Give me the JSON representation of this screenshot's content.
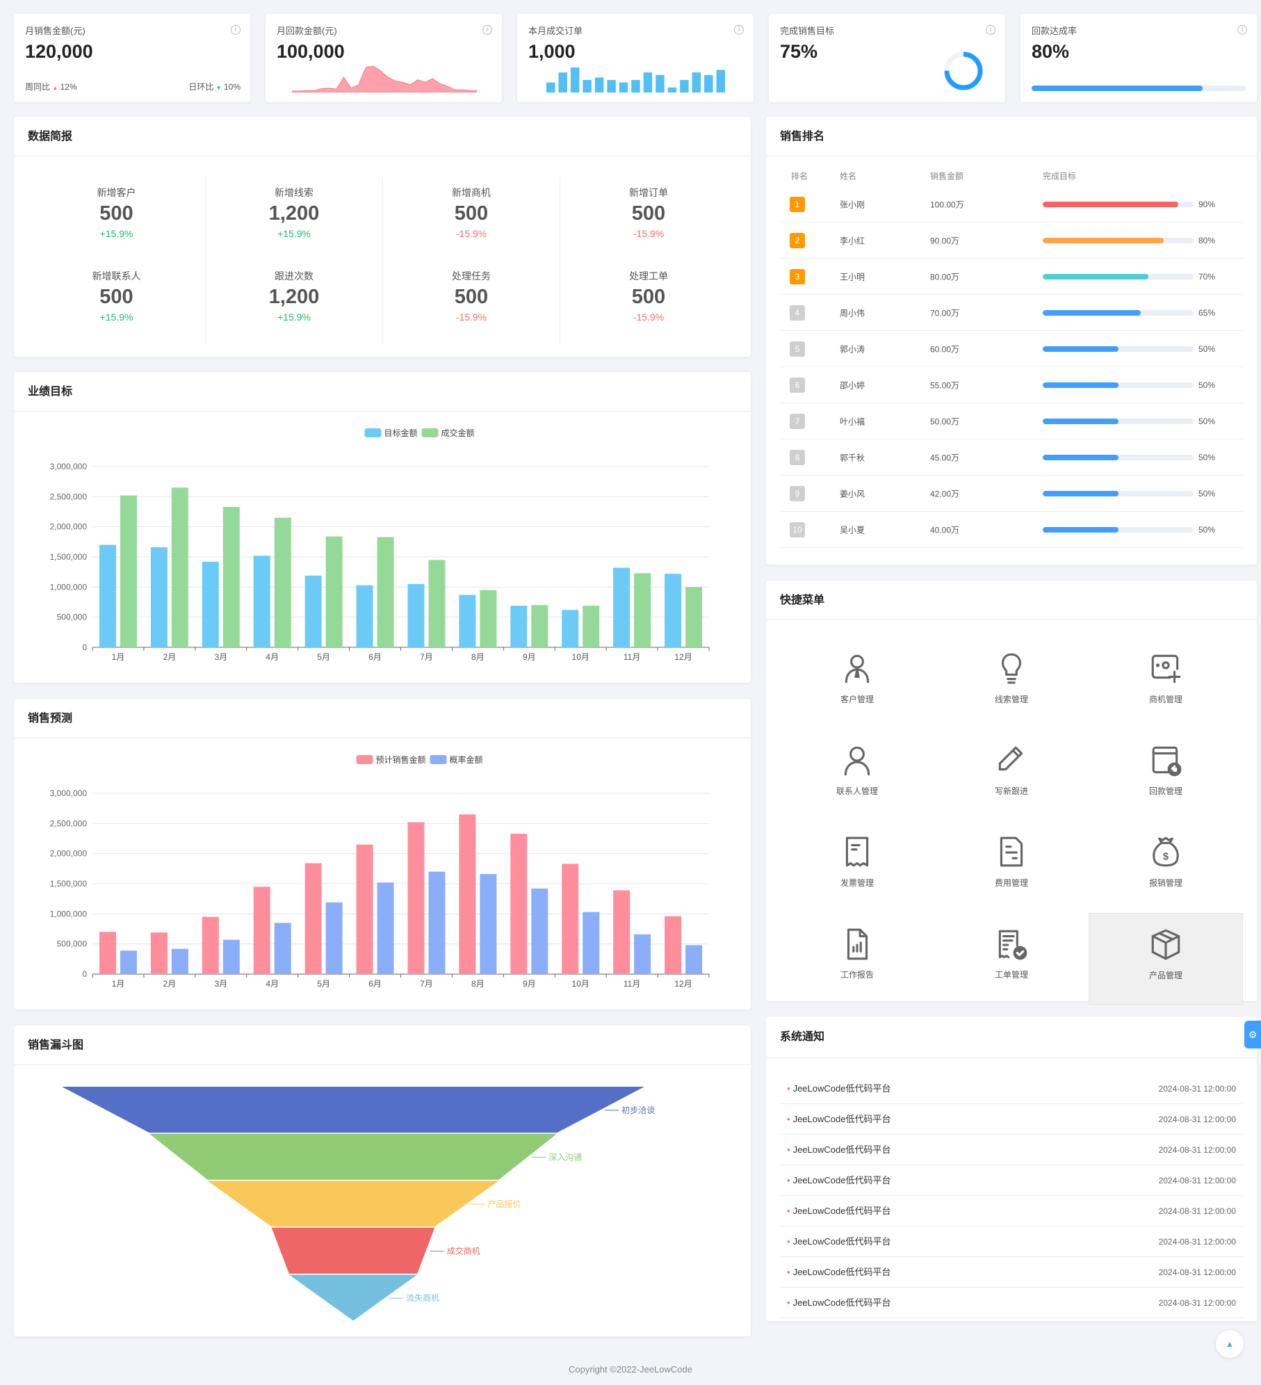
{
  "stats": [
    {
      "title": "月销售金额(元)",
      "value": "120,000",
      "week_label": "周同比",
      "week_value": "12%",
      "day_label": "日环比",
      "day_value": "10%"
    },
    {
      "title": "月回款金额(元)",
      "value": "100,000",
      "sparkline": [
        0,
        0,
        0.02,
        0.02,
        0.1,
        0.12,
        0.08,
        0.55,
        0.12,
        0.25,
        0.95,
        1,
        0.8,
        0.55,
        0.4,
        0.35,
        0.25,
        0.45,
        0.35,
        0.5,
        0.3,
        0.2,
        0.05,
        0.05,
        0.02,
        0.02
      ]
    },
    {
      "title": "本月成交订单",
      "value": "1,000",
      "bars": [
        4,
        8,
        10,
        5,
        6,
        5,
        4,
        5,
        8,
        7,
        2,
        5,
        8,
        7,
        9
      ]
    },
    {
      "title": "完成销售目标",
      "value": "75%",
      "progress": 75
    },
    {
      "title": "回款达成率",
      "value": "80%",
      "progress": 80
    }
  ],
  "brief": {
    "title": "数据简报",
    "items": [
      {
        "label": "新增客户",
        "value": "500",
        "change": "+15.9%",
        "trend": "up"
      },
      {
        "label": "新增线索",
        "value": "1,200",
        "change": "+15.9%",
        "trend": "up"
      },
      {
        "label": "新增商机",
        "value": "500",
        "change": "-15.9%",
        "trend": "down"
      },
      {
        "label": "新增订单",
        "value": "500",
        "change": "-15.9%",
        "trend": "down"
      },
      {
        "label": "新增联系人",
        "value": "500",
        "change": "+15.9%",
        "trend": "up"
      },
      {
        "label": "跟进次数",
        "value": "1,200",
        "change": "+15.9%",
        "trend": "up"
      },
      {
        "label": "处理任务",
        "value": "500",
        "change": "-15.9%",
        "trend": "down"
      },
      {
        "label": "处理工单",
        "value": "500",
        "change": "-15.9%",
        "trend": "down"
      }
    ]
  },
  "ranking": {
    "title": "销售排名",
    "headers": [
      "排名",
      "姓名",
      "销售金额",
      "完成目标"
    ],
    "rows": [
      {
        "rank": "1",
        "name": "张小刚",
        "amount": "100.00万",
        "pct": 90,
        "pct_label": "90%",
        "color": "#ff6161"
      },
      {
        "rank": "2",
        "name": "李小红",
        "amount": "90.00万",
        "pct": 80,
        "pct_label": "80%",
        "color": "#ffa44a"
      },
      {
        "rank": "3",
        "name": "王小明",
        "amount": "80.00万",
        "pct": 70,
        "pct_label": "70%",
        "color": "#4ecfd0"
      },
      {
        "rank": "4",
        "name": "周小伟",
        "amount": "70.00万",
        "pct": 65,
        "pct_label": "65%",
        "color": "#409eff"
      },
      {
        "rank": "5",
        "name": "郭小涛",
        "amount": "60.00万",
        "pct": 50,
        "pct_label": "50%",
        "color": "#409eff"
      },
      {
        "rank": "6",
        "name": "邵小婷",
        "amount": "55.00万",
        "pct": 50,
        "pct_label": "50%",
        "color": "#409eff"
      },
      {
        "rank": "7",
        "name": "叶小福",
        "amount": "50.00万",
        "pct": 50,
        "pct_label": "50%",
        "color": "#409eff"
      },
      {
        "rank": "8",
        "name": "郭千秋",
        "amount": "45.00万",
        "pct": 50,
        "pct_label": "50%",
        "color": "#409eff"
      },
      {
        "rank": "9",
        "name": "姜小风",
        "amount": "42.00万",
        "pct": 50,
        "pct_label": "50%",
        "color": "#409eff"
      },
      {
        "rank": "10",
        "name": "吴小夏",
        "amount": "40.00万",
        "pct": 50,
        "pct_label": "50%",
        "color": "#409eff"
      }
    ]
  },
  "quick_menu": {
    "title": "快捷菜单",
    "items": [
      {
        "label": "客户管理",
        "icon": "customer-icon"
      },
      {
        "label": "线索管理",
        "icon": "lightbulb-icon"
      },
      {
        "label": "商机管理",
        "icon": "opportunity-add-icon"
      },
      {
        "label": "联系人管理",
        "icon": "contact-icon"
      },
      {
        "label": "写新跟进",
        "icon": "pencil-icon"
      },
      {
        "label": "回款管理",
        "icon": "payment-return-icon"
      },
      {
        "label": "发票管理",
        "icon": "receipt-icon"
      },
      {
        "label": "费用管理",
        "icon": "document-icon"
      },
      {
        "label": "报销管理",
        "icon": "money-bag-icon"
      },
      {
        "label": "工作报告",
        "icon": "report-chart-icon"
      },
      {
        "label": "工单管理",
        "icon": "work-order-check-icon"
      },
      {
        "label": "产品管理",
        "icon": "box-icon"
      }
    ]
  },
  "notices": {
    "title": "系统通知",
    "items": [
      {
        "text": "JeeLowCode低代码平台",
        "time": "2024-08-31 12:00:00"
      },
      {
        "text": "JeeLowCode低代码平台",
        "time": "2024-08-31 12:00:00"
      },
      {
        "text": "JeeLowCode低代码平台",
        "time": "2024-08-31 12:00:00"
      },
      {
        "text": "JeeLowCode低代码平台",
        "time": "2024-08-31 12:00:00"
      },
      {
        "text": "JeeLowCode低代码平台",
        "time": "2024-08-31 12:00:00"
      },
      {
        "text": "JeeLowCode低代码平台",
        "time": "2024-08-31 12:00:00"
      },
      {
        "text": "JeeLowCode低代码平台",
        "time": "2024-08-31 12:00:00"
      },
      {
        "text": "JeeLowCode低代码平台",
        "time": "2024-08-31 12:00:00"
      }
    ]
  },
  "footer": {
    "copyright": "Copyright ©2022-JeeLowCode"
  },
  "chart_data": [
    {
      "panel_title": "业绩目标",
      "type": "bar",
      "categories": [
        "1月",
        "2月",
        "3月",
        "4月",
        "5月",
        "6月",
        "7月",
        "8月",
        "9月",
        "10月",
        "11月",
        "12月"
      ],
      "series": [
        {
          "name": "目标金额",
          "color": "#6ccaf6",
          "values": [
            1700000,
            1660000,
            1420000,
            1520000,
            1190000,
            1030000,
            1050000,
            870000,
            690000,
            620000,
            1320000,
            1220000
          ]
        },
        {
          "name": "成交金额",
          "color": "#95d998",
          "values": [
            2520000,
            2650000,
            2330000,
            2150000,
            1840000,
            1830000,
            1450000,
            950000,
            700000,
            690000,
            1230000,
            1000000
          ]
        }
      ],
      "ylim": [
        0,
        3000000
      ],
      "yticks": [
        "0",
        "500,000",
        "1,000,000",
        "1,500,000",
        "2,000,000",
        "2,500,000",
        "3,000,000"
      ],
      "grid": true,
      "legend": "top"
    },
    {
      "panel_title": "销售预测",
      "type": "bar",
      "categories": [
        "1月",
        "2月",
        "3月",
        "4月",
        "5月",
        "6月",
        "7月",
        "8月",
        "9月",
        "10月",
        "11月",
        "12月"
      ],
      "series": [
        {
          "name": "预计销售金额",
          "color": "#ff8e9c",
          "values": [
            700000,
            690000,
            950000,
            1450000,
            1840000,
            2150000,
            2520000,
            2650000,
            2330000,
            1830000,
            1390000,
            960000
          ]
        },
        {
          "name": "概率金额",
          "color": "#8aaefa",
          "values": [
            390000,
            420000,
            570000,
            850000,
            1190000,
            1520000,
            1700000,
            1660000,
            1420000,
            1030000,
            660000,
            480000
          ]
        }
      ],
      "ylim": [
        0,
        3000000
      ],
      "yticks": [
        "0",
        "500,000",
        "1,000,000",
        "1,500,000",
        "2,000,000",
        "2,500,000",
        "3,000,000"
      ],
      "grid": true,
      "legend": "top"
    },
    {
      "panel_title": "销售漏斗图",
      "type": "funnel",
      "categories": [
        "初步洽谈",
        "深入沟通",
        "产品报价",
        "成交商机",
        "流失商机"
      ],
      "values": [
        100,
        70,
        50,
        28,
        22
      ],
      "colors": [
        "#5470c6",
        "#91cc75",
        "#fac858",
        "#ee6666",
        "#73c0de"
      ]
    }
  ]
}
